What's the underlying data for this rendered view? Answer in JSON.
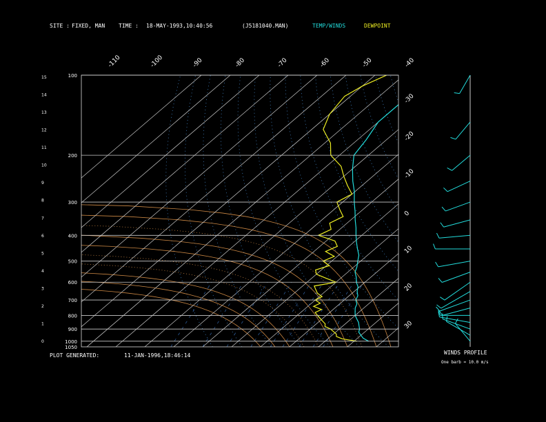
{
  "header": {
    "site_label": "SITE :",
    "site_value": "FIXED, MAN",
    "time_label": "TIME :",
    "time_value": "18-MAY-1993,10:40:56",
    "file_value": "(J5181040.MAN)",
    "legend_temp": "TEMP/WINDS",
    "legend_dew": "DEWPOINT"
  },
  "footer": {
    "plot_label": "PLOT GENERATED:",
    "plot_value": "11-JAN-1996,18:46:14",
    "winds_title": "WINDS PROFILE",
    "winds_scale": "One barb = 10.0 m/s"
  },
  "colors": {
    "temp": "#22dddd",
    "dewpoint": "#eeee22",
    "isotherm": "#cccccc",
    "mixing_ratio": "#cc8844",
    "adiabat": "#4488cc",
    "header_text": "#ffffff"
  },
  "chart_data": {
    "type": "line",
    "title": "",
    "pressure_labels": [
      "100",
      "200",
      "300",
      "400",
      "500",
      "600",
      "700",
      "800",
      "900",
      "1000",
      "1050"
    ],
    "height_labels": [
      "15",
      "14",
      "13",
      "12",
      "11",
      "10",
      "9",
      "8",
      "7",
      "6",
      "5",
      "4",
      "3",
      "2",
      "1",
      "0"
    ],
    "temp_top_labels": [
      "-110",
      "-100",
      "-90",
      "-80",
      "-70",
      "-60",
      "-50",
      "-40"
    ],
    "temp_right_labels": [
      "-30",
      "-20",
      "-10",
      "0",
      "10",
      "20",
      "30"
    ],
    "series": [
      {
        "name": "TEMP/WINDS",
        "pressure": [
          1000,
          975,
          950,
          925,
          900,
          875,
          850,
          825,
          800,
          775,
          750,
          725,
          700,
          675,
          650,
          625,
          600,
          575,
          550,
          525,
          500,
          475,
          450,
          425,
          400,
          375,
          350,
          325,
          300,
          275,
          250,
          225,
          200,
          175,
          150,
          125,
          110,
          100
        ],
        "temp": [
          25,
          22,
          20,
          18,
          17,
          15.5,
          14,
          12,
          10,
          8.5,
          7,
          6,
          4,
          3,
          1,
          -0.5,
          -3,
          -5,
          -7.5,
          -9,
          -11,
          -13,
          -16,
          -19,
          -22,
          -25,
          -28.5,
          -32,
          -36,
          -40,
          -45,
          -50,
          -55,
          -57,
          -60,
          -60,
          -61,
          -62
        ]
      },
      {
        "name": "DEWPOINT",
        "pressure": [
          1000,
          980,
          960,
          940,
          920,
          900,
          880,
          860,
          840,
          820,
          800,
          780,
          760,
          740,
          720,
          700,
          680,
          660,
          640,
          620,
          600,
          580,
          560,
          540,
          520,
          500,
          480,
          460,
          440,
          420,
          400,
          380,
          360,
          340,
          320,
          300,
          280,
          260,
          240,
          220,
          200,
          180,
          160,
          140,
          120,
          110,
          100
        ],
        "dewpoint": [
          21,
          15,
          12,
          11,
          9,
          7,
          4,
          3,
          1,
          -1,
          -3,
          -5,
          -4,
          -8,
          -7,
          -10,
          -9,
          -12,
          -14,
          -16,
          -10,
          -15,
          -20,
          -22,
          -19,
          -23,
          -21,
          -26,
          -24,
          -27,
          -35,
          -33,
          -36,
          -34,
          -38,
          -42,
          -40,
          -45,
          -50,
          -55,
          -63,
          -68,
          -76,
          -80,
          -82,
          -80,
          -76
        ]
      }
    ],
    "winds": [
      {
        "p": 1000,
        "dir": 320,
        "spd": 15
      },
      {
        "p": 950,
        "dir": 300,
        "spd": 22
      },
      {
        "p": 900,
        "dir": 290,
        "spd": 25
      },
      {
        "p": 850,
        "dir": 280,
        "spd": 28
      },
      {
        "p": 800,
        "dir": 270,
        "spd": 26
      },
      {
        "p": 750,
        "dir": 255,
        "spd": 24
      },
      {
        "p": 700,
        "dir": 250,
        "spd": 30
      },
      {
        "p": 650,
        "dir": 240,
        "spd": 32
      },
      {
        "p": 600,
        "dir": 235,
        "spd": 28
      },
      {
        "p": 550,
        "dir": 250,
        "spd": 26
      },
      {
        "p": 500,
        "dir": 260,
        "spd": 30
      },
      {
        "p": 450,
        "dir": 270,
        "spd": 34
      },
      {
        "p": 400,
        "dir": 265,
        "spd": 28
      },
      {
        "p": 350,
        "dir": 255,
        "spd": 22
      },
      {
        "p": 300,
        "dir": 250,
        "spd": 20
      },
      {
        "p": 250,
        "dir": 245,
        "spd": 18
      },
      {
        "p": 200,
        "dir": 230,
        "spd": 16
      },
      {
        "p": 150,
        "dir": 220,
        "spd": 14
      },
      {
        "p": 100,
        "dir": 210,
        "spd": 12
      }
    ]
  }
}
